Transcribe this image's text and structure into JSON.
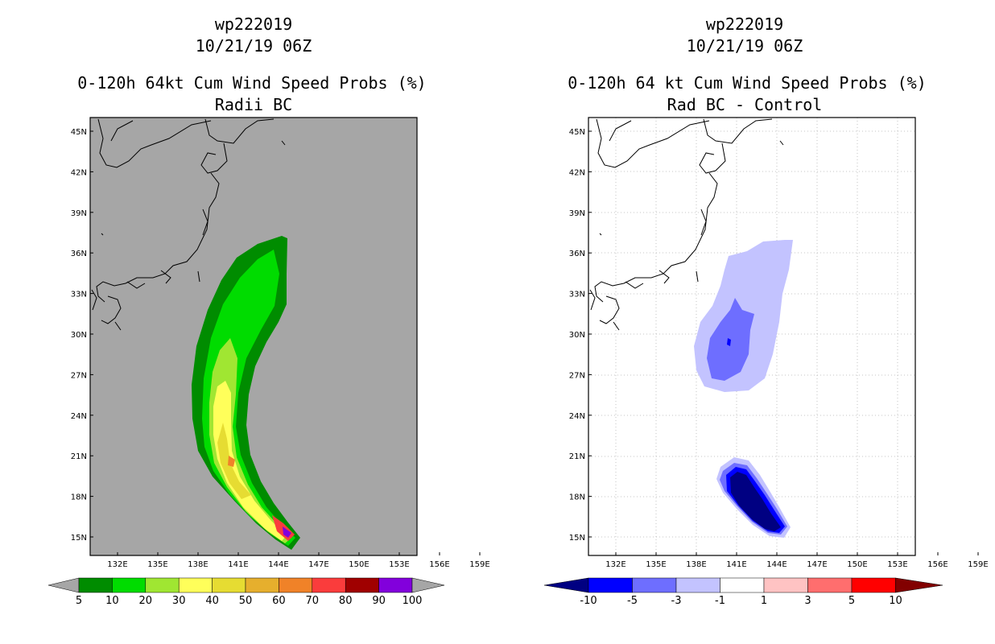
{
  "left_panel": {
    "title_storm": "wp222019",
    "title_time": "10/21/19 06Z",
    "title_product": "0-120h 64kt Cum Wind Speed Probs (%)",
    "title_subtitle": "Radii BC",
    "lat_labels": [
      "45N",
      "42N",
      "39N",
      "36N",
      "33N",
      "30N",
      "27N",
      "24N",
      "21N",
      "18N",
      "15N"
    ],
    "lon_labels": [
      "132E",
      "135E",
      "138E",
      "141E",
      "144E",
      "147E",
      "150E",
      "153E",
      "156E",
      "159E"
    ],
    "colorbar": {
      "labels": [
        "5",
        "10",
        "20",
        "30",
        "40",
        "50",
        "60",
        "70",
        "80",
        "90",
        "100"
      ],
      "colors": [
        "#008c00",
        "#00dc00",
        "#a0e632",
        "#ffff5a",
        "#e6dc32",
        "#e6af2d",
        "#f08228",
        "#fa3c3c",
        "#a00000",
        "#8200dc"
      ],
      "background": "#a6a6a6"
    }
  },
  "right_panel": {
    "title_storm": "wp222019",
    "title_time": "10/21/19 06Z",
    "title_product": "0-120h 64 kt Cum Wind Speed Probs (%)",
    "title_subtitle": "Rad BC - Control",
    "lat_labels": [
      "45N",
      "42N",
      "39N",
      "36N",
      "33N",
      "30N",
      "27N",
      "24N",
      "21N",
      "18N",
      "15N"
    ],
    "lon_labels": [
      "132E",
      "135E",
      "138E",
      "141E",
      "144E",
      "147E",
      "150E",
      "153E",
      "156E",
      "159E"
    ],
    "colorbar": {
      "labels": [
        "-10",
        "-5",
        "-3",
        "-1",
        "1",
        "3",
        "5",
        "10"
      ],
      "colors": [
        "#000082",
        "#0000ff",
        "#6e6eff",
        "#c3c3ff",
        "#ffffff",
        "#ffc3c3",
        "#ff6e6e",
        "#ff0000",
        "#820000"
      ]
    }
  }
}
